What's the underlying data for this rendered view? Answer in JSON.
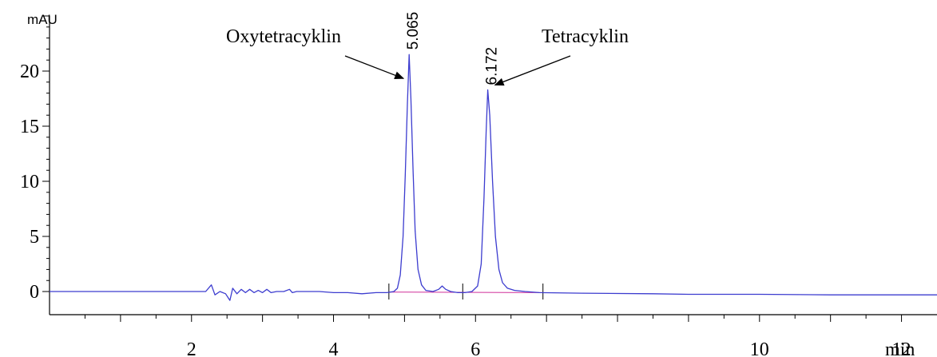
{
  "chart_data": {
    "type": "line",
    "title": "",
    "ylabel": "mAU",
    "xlabel": "min",
    "xlim": [
      0,
      12.5
    ],
    "ylim": [
      -2.1,
      25
    ],
    "x_ticks": [
      {
        "value": 2,
        "label": "2"
      },
      {
        "value": 4,
        "label": "4"
      },
      {
        "value": 6,
        "label": "6"
      },
      {
        "value": 10,
        "label": "10"
      },
      {
        "value": 12,
        "label": "12"
      }
    ],
    "y_ticks": [
      0,
      5,
      10,
      15,
      20
    ],
    "peaks": [
      {
        "retention_time": 5.065,
        "rt_label": "5.065",
        "height": 21.5,
        "width": 0.06,
        "compound": "Oxytetracyklin"
      },
      {
        "retention_time": 6.172,
        "rt_label": "6.172",
        "height": 18.3,
        "width": 0.07,
        "compound": "Tetracyklin"
      }
    ],
    "baseline_markers": [
      4.78,
      5.82,
      6.95
    ],
    "series": [
      {
        "color": "#3c3ccf",
        "x": [
          0,
          2.2,
          2.28,
          2.33,
          2.4,
          2.48,
          2.54,
          2.58,
          2.64,
          2.7,
          2.76,
          2.82,
          2.88,
          2.94,
          3.0,
          3.06,
          3.12,
          3.2,
          3.3,
          3.38,
          3.42,
          3.48,
          3.6,
          3.8,
          4.0,
          4.2,
          4.4,
          4.6,
          4.75,
          4.85,
          4.9,
          4.94,
          4.98,
          5.01,
          5.04,
          5.065,
          5.09,
          5.12,
          5.15,
          5.19,
          5.24,
          5.3,
          5.4,
          5.48,
          5.53,
          5.58,
          5.65,
          5.75,
          5.85,
          5.95,
          6.03,
          6.08,
          6.12,
          6.15,
          6.172,
          6.2,
          6.24,
          6.28,
          6.33,
          6.38,
          6.45,
          6.55,
          6.7,
          6.9,
          7.5,
          8.5,
          9.0,
          10.0,
          11.0,
          11.6,
          12.0,
          12.5
        ],
        "y": [
          0.0,
          0.0,
          0.6,
          -0.3,
          0.0,
          -0.2,
          -0.8,
          0.3,
          -0.2,
          0.2,
          -0.1,
          0.2,
          -0.1,
          0.1,
          -0.1,
          0.2,
          -0.1,
          0.0,
          0.0,
          0.2,
          -0.1,
          0.0,
          0.0,
          0.0,
          -0.1,
          -0.1,
          -0.2,
          -0.1,
          -0.1,
          0.0,
          0.3,
          1.5,
          5.0,
          10.5,
          17.0,
          21.5,
          17.5,
          11.0,
          5.5,
          2.0,
          0.6,
          0.1,
          0.0,
          0.2,
          0.5,
          0.2,
          0.0,
          -0.1,
          -0.1,
          0.0,
          0.5,
          2.5,
          8.5,
          14.5,
          18.3,
          16.0,
          10.0,
          5.0,
          2.0,
          0.8,
          0.3,
          0.1,
          0.0,
          -0.1,
          -0.15,
          -0.2,
          -0.25,
          -0.25,
          -0.3,
          -0.3,
          -0.3,
          -0.3
        ]
      }
    ]
  }
}
